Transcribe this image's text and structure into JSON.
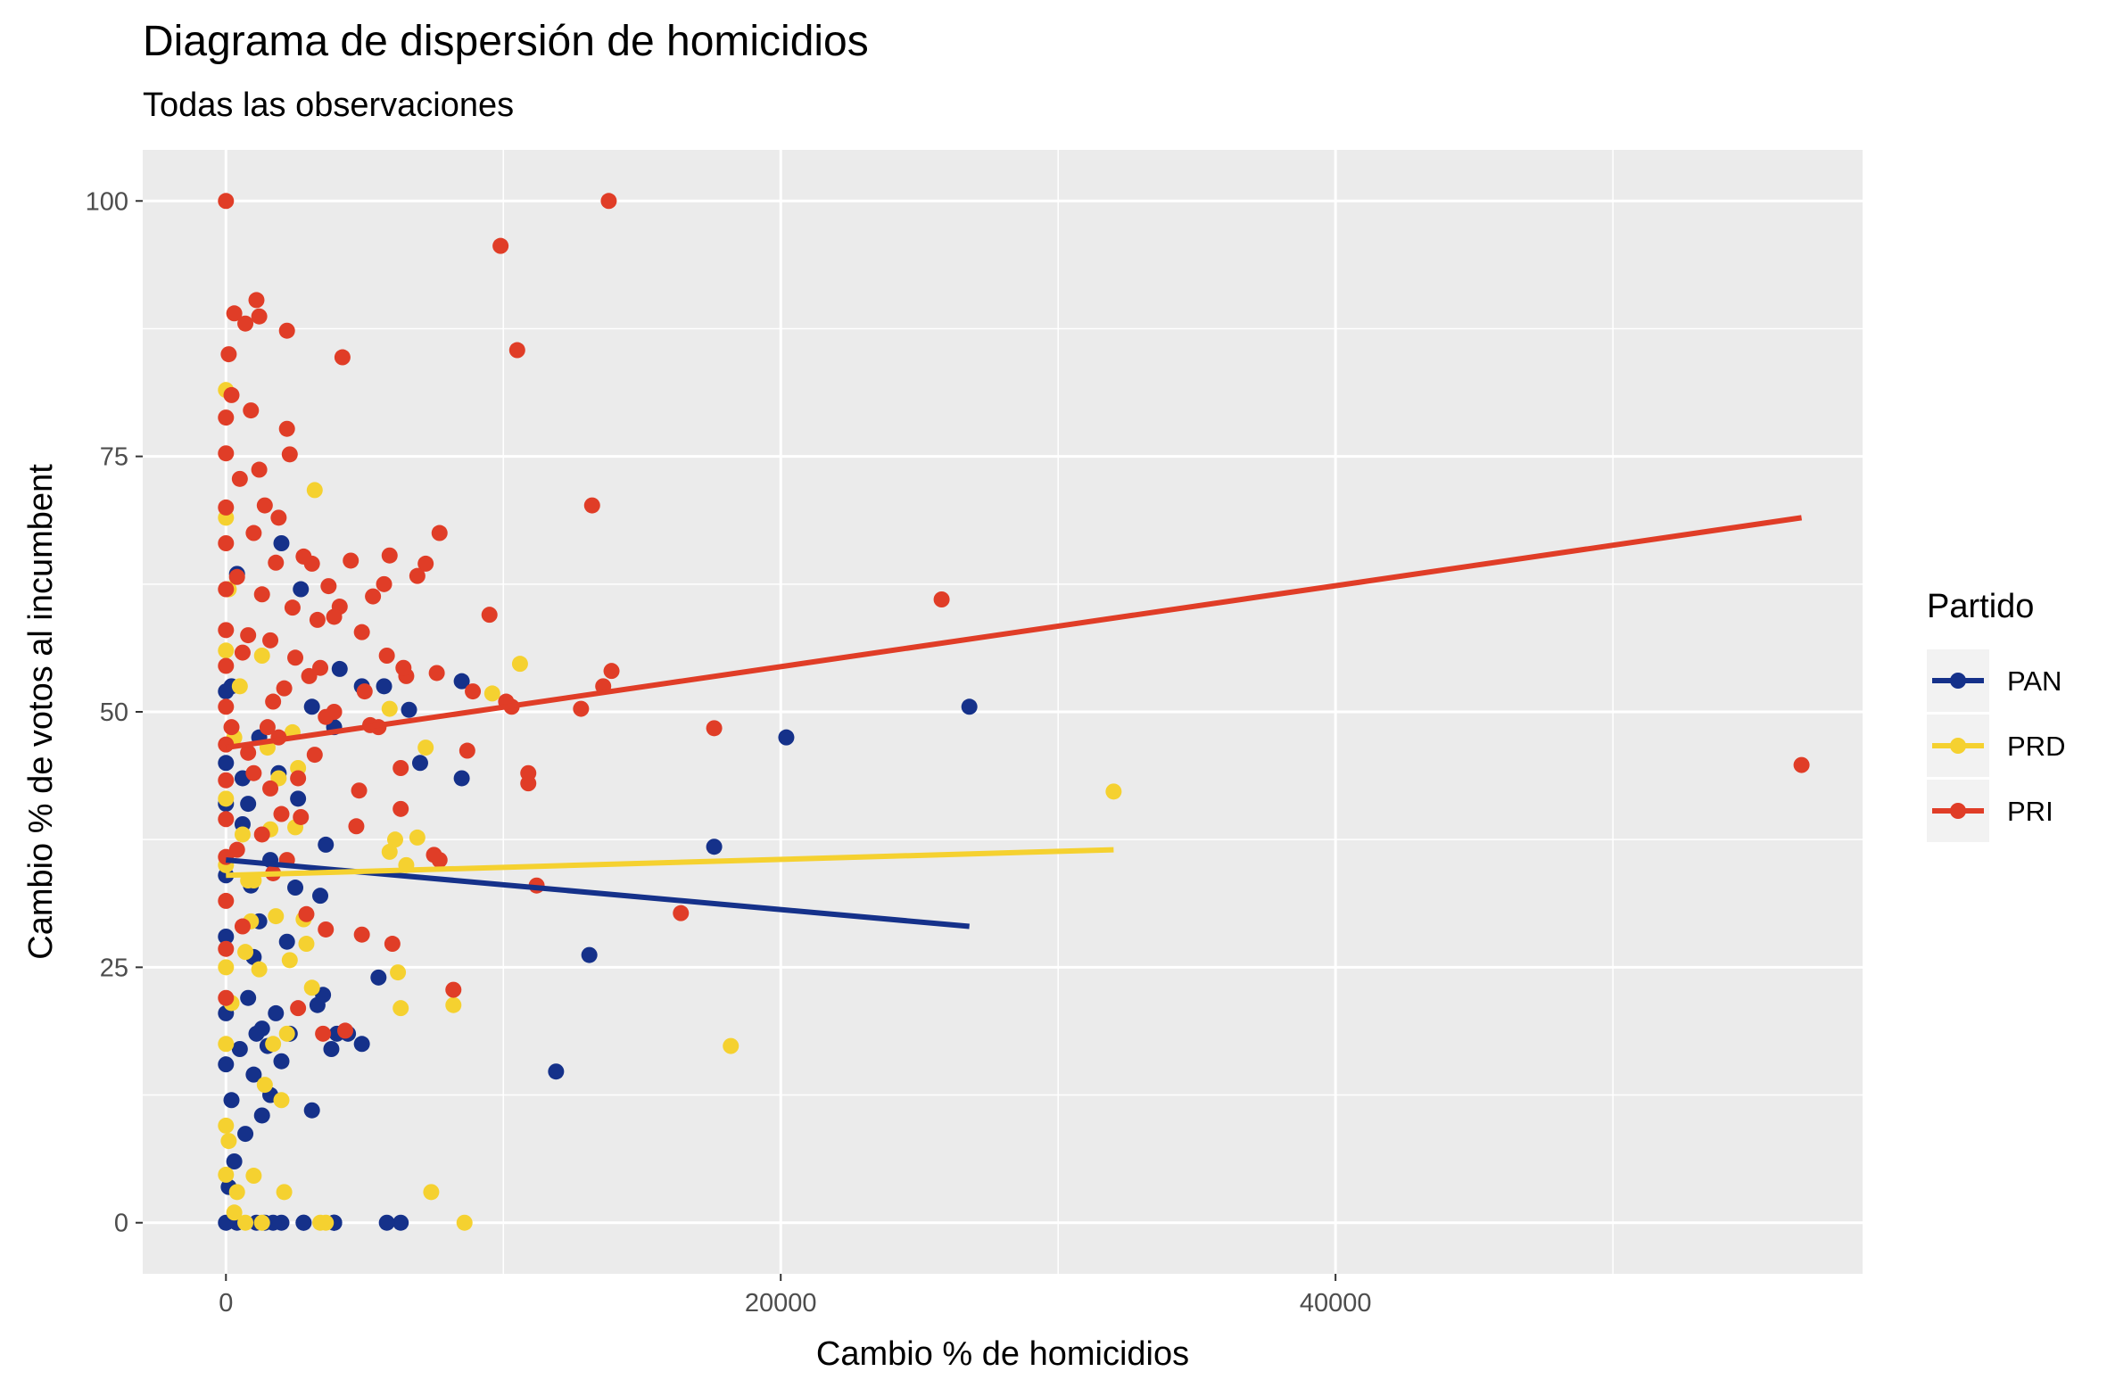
{
  "chart_data": {
    "type": "scatter",
    "title": "Diagrama de dispersión de homicidios",
    "subtitle": "Todas las observaciones",
    "xlabel": "Cambio % de homicidios",
    "ylabel": "Cambio % de votos al incumbent",
    "xlim": [
      -3000,
      59000
    ],
    "ylim": [
      -5,
      105
    ],
    "x_ticks": [
      0,
      20000,
      40000
    ],
    "x_tick_labels": [
      "0",
      "20000",
      "40000"
    ],
    "y_ticks": [
      0,
      25,
      50,
      75,
      100
    ],
    "y_tick_labels": [
      "0",
      "25",
      "50",
      "75",
      "100"
    ],
    "grid": true,
    "legend": {
      "title": "Partido",
      "position": "right"
    },
    "series": [
      {
        "name": "PAN",
        "color": "#15318A",
        "trend": [
          [
            0,
            35.5
          ],
          [
            26800,
            29.0
          ]
        ],
        "points": [
          [
            26800,
            50.5
          ],
          [
            20200,
            47.5
          ],
          [
            17600,
            36.8
          ],
          [
            13100,
            26.2
          ],
          [
            11900,
            14.8
          ],
          [
            8500,
            53.0
          ],
          [
            8500,
            43.5
          ],
          [
            7000,
            45.0
          ],
          [
            6600,
            50.2
          ],
          [
            6300,
            0
          ],
          [
            5800,
            0
          ],
          [
            5500,
            24.0
          ],
          [
            5700,
            52.5
          ],
          [
            4900,
            17.5
          ],
          [
            4900,
            52.5
          ],
          [
            4400,
            18.5
          ],
          [
            4100,
            54.2
          ],
          [
            4000,
            18.5
          ],
          [
            3900,
            48.5
          ],
          [
            3900,
            0
          ],
          [
            3900,
            0
          ],
          [
            3900,
            0
          ],
          [
            3800,
            17.0
          ],
          [
            3600,
            37.0
          ],
          [
            3500,
            22.3
          ],
          [
            3400,
            32.0
          ],
          [
            3300,
            21.3
          ],
          [
            3100,
            11.0
          ],
          [
            3100,
            50.5
          ],
          [
            2800,
            0
          ],
          [
            2800,
            0
          ],
          [
            2700,
            62.0
          ],
          [
            2500,
            32.8
          ],
          [
            2300,
            18.5
          ],
          [
            2000,
            0
          ],
          [
            2000,
            15.8
          ],
          [
            2000,
            66.5
          ],
          [
            1800,
            20.5
          ],
          [
            1700,
            0
          ],
          [
            1600,
            12.5
          ],
          [
            1500,
            17.3
          ],
          [
            1400,
            0
          ],
          [
            1300,
            19.0
          ],
          [
            1200,
            29.5
          ],
          [
            1200,
            47.5
          ],
          [
            1100,
            0
          ],
          [
            1100,
            18.5
          ],
          [
            1000,
            14.5
          ],
          [
            900,
            33.0
          ],
          [
            800,
            22.0
          ],
          [
            700,
            8.7
          ],
          [
            600,
            43.5
          ],
          [
            500,
            17.0
          ],
          [
            400,
            0
          ],
          [
            300,
            6.0
          ],
          [
            200,
            12.0
          ],
          [
            100,
            3.5
          ],
          [
            0,
            20.5
          ],
          [
            0,
            34.0
          ],
          [
            0,
            41.0
          ],
          [
            0,
            52.0
          ],
          [
            0,
            45.0
          ],
          [
            0,
            28.0
          ],
          [
            0,
            15.5
          ],
          [
            0,
            0
          ],
          [
            200,
            52.5
          ],
          [
            400,
            63.5
          ],
          [
            600,
            39.0
          ],
          [
            800,
            41.0
          ],
          [
            1000,
            26.0
          ],
          [
            1300,
            10.5
          ],
          [
            1600,
            35.5
          ],
          [
            1900,
            44.0
          ],
          [
            2200,
            27.5
          ],
          [
            2600,
            41.5
          ]
        ]
      },
      {
        "name": "PRD",
        "color": "#F5D130",
        "trend": [
          [
            0,
            34.0
          ],
          [
            32000,
            36.5
          ]
        ],
        "points": [
          [
            32000,
            42.2
          ],
          [
            18200,
            17.3
          ],
          [
            10600,
            54.7
          ],
          [
            9600,
            51.8
          ],
          [
            8600,
            0
          ],
          [
            8200,
            21.3
          ],
          [
            7400,
            3.0
          ],
          [
            7200,
            46.5
          ],
          [
            6900,
            37.7
          ],
          [
            6500,
            35.0
          ],
          [
            6300,
            21.0
          ],
          [
            6200,
            24.5
          ],
          [
            6100,
            37.5
          ],
          [
            5900,
            36.3
          ],
          [
            5900,
            50.3
          ],
          [
            3600,
            0
          ],
          [
            3400,
            0
          ],
          [
            3200,
            71.7
          ],
          [
            3100,
            23.0
          ],
          [
            2900,
            27.3
          ],
          [
            2800,
            29.7
          ],
          [
            2600,
            44.5
          ],
          [
            2500,
            38.7
          ],
          [
            2300,
            25.7
          ],
          [
            2200,
            18.5
          ],
          [
            2100,
            3.0
          ],
          [
            2000,
            12.0
          ],
          [
            1900,
            43.5
          ],
          [
            1800,
            30.0
          ],
          [
            1700,
            17.5
          ],
          [
            1500,
            46.5
          ],
          [
            1400,
            13.5
          ],
          [
            1300,
            0
          ],
          [
            1200,
            24.8
          ],
          [
            1000,
            4.6
          ],
          [
            900,
            29.5
          ],
          [
            800,
            33.5
          ],
          [
            700,
            0
          ],
          [
            600,
            38.0
          ],
          [
            400,
            3.0
          ],
          [
            300,
            1.0
          ],
          [
            200,
            21.5
          ],
          [
            100,
            8.0
          ],
          [
            0,
            4.7
          ],
          [
            0,
            9.5
          ],
          [
            0,
            17.5
          ],
          [
            0,
            25.0
          ],
          [
            0,
            35.0
          ],
          [
            0,
            41.5
          ],
          [
            0,
            56.0
          ],
          [
            0,
            69.0
          ],
          [
            0,
            81.5
          ],
          [
            100,
            62.0
          ],
          [
            300,
            47.5
          ],
          [
            500,
            52.5
          ],
          [
            700,
            26.5
          ],
          [
            1000,
            33.5
          ],
          [
            1300,
            55.5
          ],
          [
            1600,
            38.5
          ],
          [
            2400,
            48.0
          ]
        ]
      },
      {
        "name": "PRI",
        "color": "#E03D27",
        "trend": [
          [
            0,
            46.5
          ],
          [
            56800,
            69.0
          ]
        ],
        "points": [
          [
            56800,
            44.8
          ],
          [
            25800,
            61.0
          ],
          [
            17600,
            48.4
          ],
          [
            16400,
            30.3
          ],
          [
            13800,
            100
          ],
          [
            13900,
            54.0
          ],
          [
            13600,
            52.5
          ],
          [
            13200,
            70.2
          ],
          [
            12800,
            50.3
          ],
          [
            11200,
            33.0
          ],
          [
            10900,
            43.0
          ],
          [
            10900,
            44.0
          ],
          [
            10500,
            85.4
          ],
          [
            10300,
            50.5
          ],
          [
            10100,
            51.0
          ],
          [
            9900,
            95.6
          ],
          [
            9500,
            59.5
          ],
          [
            8900,
            52.0
          ],
          [
            8700,
            46.2
          ],
          [
            8200,
            22.8
          ],
          [
            7700,
            35.5
          ],
          [
            7700,
            67.5
          ],
          [
            7600,
            53.8
          ],
          [
            7500,
            36.0
          ],
          [
            7200,
            64.5
          ],
          [
            6900,
            63.3
          ],
          [
            6500,
            53.5
          ],
          [
            6400,
            54.3
          ],
          [
            6300,
            40.5
          ],
          [
            6300,
            44.5
          ],
          [
            6000,
            27.3
          ],
          [
            5900,
            65.3
          ],
          [
            5800,
            55.5
          ],
          [
            5700,
            62.5
          ],
          [
            5500,
            48.5
          ],
          [
            5300,
            61.3
          ],
          [
            5200,
            48.7
          ],
          [
            5000,
            52.0
          ],
          [
            4900,
            57.8
          ],
          [
            4900,
            28.2
          ],
          [
            4800,
            42.3
          ],
          [
            4700,
            38.8
          ],
          [
            4500,
            64.8
          ],
          [
            4300,
            18.8
          ],
          [
            4200,
            84.7
          ],
          [
            4100,
            60.3
          ],
          [
            3900,
            59.3
          ],
          [
            3900,
            50.0
          ],
          [
            3700,
            62.3
          ],
          [
            3600,
            49.5
          ],
          [
            3600,
            28.7
          ],
          [
            3500,
            18.5
          ],
          [
            3400,
            54.3
          ],
          [
            3300,
            59.0
          ],
          [
            3200,
            45.8
          ],
          [
            3100,
            64.5
          ],
          [
            3000,
            53.5
          ],
          [
            2900,
            30.2
          ],
          [
            2800,
            65.2
          ],
          [
            2700,
            39.7
          ],
          [
            2600,
            21.0
          ],
          [
            2500,
            55.3
          ],
          [
            2400,
            60.2
          ],
          [
            2300,
            75.2
          ],
          [
            2200,
            77.7
          ],
          [
            2200,
            87.3
          ],
          [
            2100,
            52.3
          ],
          [
            2000,
            40.0
          ],
          [
            1900,
            69.0
          ],
          [
            1800,
            64.6
          ],
          [
            1700,
            51.0
          ],
          [
            1700,
            34.2
          ],
          [
            1600,
            42.5
          ],
          [
            1500,
            48.5
          ],
          [
            1400,
            70.2
          ],
          [
            1300,
            61.5
          ],
          [
            1200,
            73.7
          ],
          [
            1200,
            88.7
          ],
          [
            1100,
            90.3
          ],
          [
            1000,
            67.5
          ],
          [
            900,
            79.5
          ],
          [
            800,
            46.0
          ],
          [
            700,
            88.0
          ],
          [
            600,
            55.8
          ],
          [
            500,
            72.8
          ],
          [
            400,
            63.2
          ],
          [
            300,
            89.0
          ],
          [
            200,
            81.0
          ],
          [
            100,
            85.0
          ],
          [
            0,
            100
          ],
          [
            0,
            75.3
          ],
          [
            0,
            70.0
          ],
          [
            0,
            66.5
          ],
          [
            0,
            62.0
          ],
          [
            0,
            58.0
          ],
          [
            0,
            54.5
          ],
          [
            0,
            50.5
          ],
          [
            0,
            46.8
          ],
          [
            0,
            43.3
          ],
          [
            0,
            39.5
          ],
          [
            0,
            35.8
          ],
          [
            0,
            31.5
          ],
          [
            0,
            26.8
          ],
          [
            0,
            22.0
          ],
          [
            0,
            78.8
          ],
          [
            200,
            48.5
          ],
          [
            400,
            36.5
          ],
          [
            600,
            29.0
          ],
          [
            800,
            57.5
          ],
          [
            1000,
            44.0
          ],
          [
            1300,
            38.0
          ],
          [
            1600,
            57.0
          ],
          [
            1900,
            47.5
          ],
          [
            2200,
            35.5
          ],
          [
            2600,
            43.5
          ]
        ]
      }
    ]
  }
}
